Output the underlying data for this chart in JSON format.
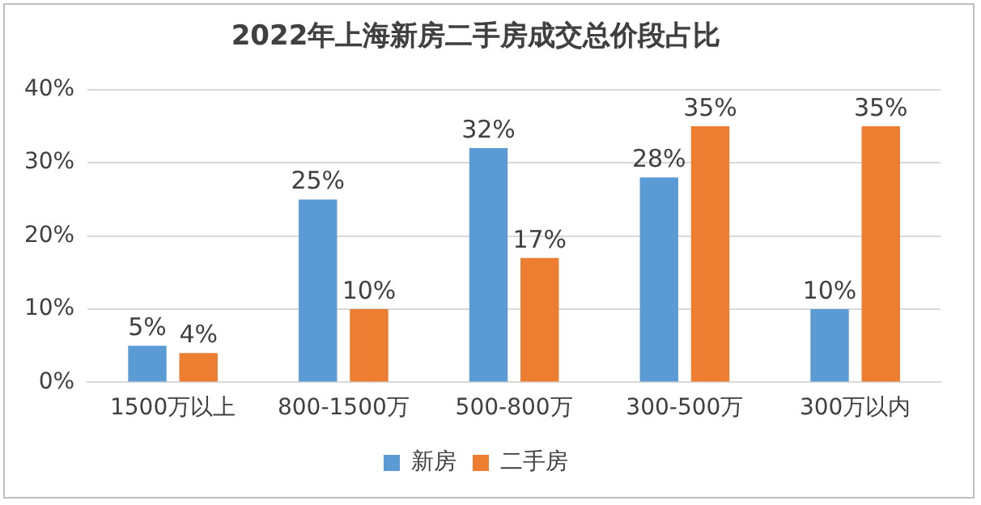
{
  "chart_data": {
    "type": "bar",
    "title": "2022年上海新房二手房成交总价段占比",
    "categories": [
      "1500万以上",
      "800-1500万",
      "500-800万",
      "300-500万",
      "300万以内"
    ],
    "series": [
      {
        "name": "新房",
        "color": "#5b9bd5",
        "values": [
          5,
          25,
          32,
          28,
          10
        ],
        "value_labels": [
          "5%",
          "25%",
          "32%",
          "28%",
          "10%"
        ]
      },
      {
        "name": "二手房",
        "color": "#ed7d31",
        "values": [
          4,
          10,
          17,
          35,
          35
        ],
        "value_labels": [
          "4%",
          "10%",
          "17%",
          "35%",
          "35%"
        ]
      }
    ],
    "ylim": [
      0,
      40
    ],
    "yticks": [
      {
        "value": 0,
        "label": "0%"
      },
      {
        "value": 10,
        "label": "10%"
      },
      {
        "value": 20,
        "label": "20%"
      },
      {
        "value": 30,
        "label": "30%"
      },
      {
        "value": 40,
        "label": "40%"
      }
    ],
    "grid": "y",
    "legend": "bottom"
  }
}
